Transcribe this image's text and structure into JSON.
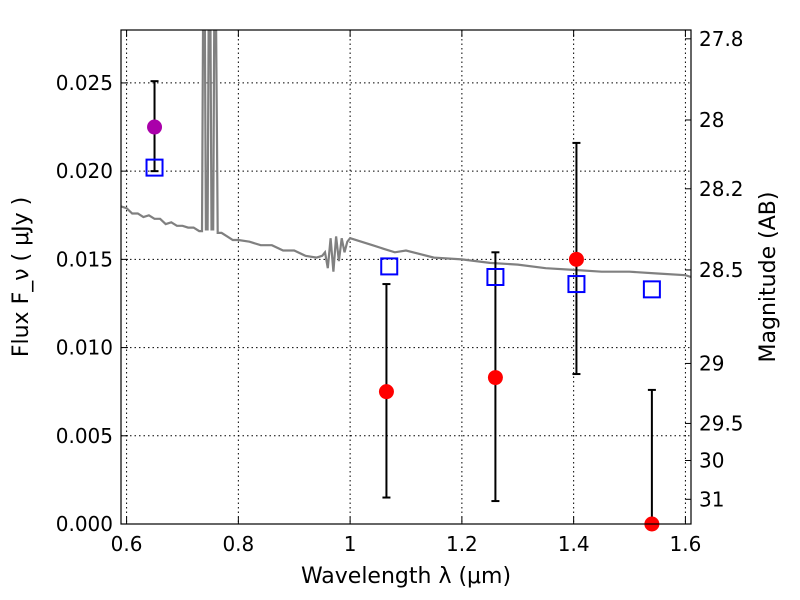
{
  "chart_data": {
    "type": "scatter",
    "xlabel": "Wavelength  λ (μm)",
    "ylabel": "Flux  F_ν  ( μJy )",
    "ylabel_right": "Magnitude (AB)",
    "xlim": [
      0.59,
      1.61
    ],
    "ylim": [
      0.0,
      0.028
    ],
    "grid": true,
    "x_ticks": [
      0.6,
      0.8,
      1.0,
      1.2,
      1.4,
      1.6
    ],
    "x_tick_labels": [
      "0.6",
      "0.8",
      "1",
      "1.2",
      "1.4",
      "1.6"
    ],
    "y_ticks": [
      0.0,
      0.005,
      0.01,
      0.015,
      0.02,
      0.025
    ],
    "y_tick_labels": [
      "0.000",
      "0.005",
      "0.010",
      "0.015",
      "0.020",
      "0.025"
    ],
    "right_ticks": [
      {
        "label": "27.8",
        "flux": 0.0275
      },
      {
        "label": "28",
        "flux": 0.0229
      },
      {
        "label": "28.2",
        "flux": 0.019
      },
      {
        "label": "28.5",
        "flux": 0.0144
      },
      {
        "label": "29",
        "flux": 0.0091
      },
      {
        "label": "29.5",
        "flux": 0.0057
      },
      {
        "label": "30",
        "flux": 0.0036
      },
      {
        "label": "31",
        "flux": 0.0014
      }
    ],
    "series": [
      {
        "color": "#808080",
        "kind": "line",
        "x": [
          0.59,
          0.6,
          0.61,
          0.62,
          0.63,
          0.64,
          0.65,
          0.66,
          0.67,
          0.68,
          0.69,
          0.7,
          0.71,
          0.72,
          0.73,
          0.735,
          0.737,
          0.74,
          0.742,
          0.745,
          0.747,
          0.75,
          0.752,
          0.755,
          0.757,
          0.76,
          0.763,
          0.766,
          0.77,
          0.78,
          0.79,
          0.8,
          0.82,
          0.84,
          0.86,
          0.88,
          0.9,
          0.92,
          0.94,
          0.95,
          0.955,
          0.96,
          0.965,
          0.97,
          0.975,
          0.98,
          0.985,
          0.99,
          0.995,
          1.0,
          1.02,
          1.04,
          1.06,
          1.08,
          1.1,
          1.15,
          1.2,
          1.25,
          1.3,
          1.35,
          1.4,
          1.45,
          1.5,
          1.55,
          1.6,
          1.61
        ],
        "y": [
          0.018,
          0.0179,
          0.0176,
          0.0176,
          0.0174,
          0.0175,
          0.0173,
          0.0173,
          0.017,
          0.0171,
          0.0169,
          0.0169,
          0.0168,
          0.0168,
          0.0166,
          0.0166,
          0.029,
          0.029,
          0.0167,
          0.0167,
          0.029,
          0.029,
          0.0167,
          0.0167,
          0.029,
          0.029,
          0.0165,
          0.0165,
          0.0165,
          0.0163,
          0.0161,
          0.0161,
          0.016,
          0.0158,
          0.0158,
          0.0155,
          0.0155,
          0.0152,
          0.0151,
          0.0152,
          0.0154,
          0.0145,
          0.0162,
          0.0143,
          0.0163,
          0.0149,
          0.0162,
          0.0154,
          0.016,
          0.0162,
          0.016,
          0.0158,
          0.0156,
          0.0154,
          0.0155,
          0.0151,
          0.015,
          0.0148,
          0.0147,
          0.0145,
          0.0144,
          0.0143,
          0.0143,
          0.0142,
          0.0141,
          0.014
        ]
      },
      {
        "color": "#aa00aa",
        "kind": "points",
        "marker": "circle",
        "x": [
          0.65
        ],
        "y": [
          0.0225
        ],
        "yerr_low": [
          0.0025
        ],
        "yerr_high": [
          0.0026
        ]
      },
      {
        "color": "#ff0000",
        "kind": "points",
        "marker": "circle",
        "x": [
          1.065,
          1.26,
          1.405,
          1.54
        ],
        "y": [
          0.0075,
          0.0083,
          0.015,
          0.0
        ],
        "yerr_low": [
          0.006,
          0.007,
          0.0065,
          0.0
        ],
        "yerr_high": [
          0.0061,
          0.0071,
          0.0066,
          0.0076
        ]
      },
      {
        "color": "#0000ff",
        "kind": "points",
        "marker": "open-square",
        "x": [
          0.65,
          1.07,
          1.26,
          1.405,
          1.54
        ],
        "y": [
          0.0202,
          0.0146,
          0.014,
          0.0136,
          0.0133
        ]
      }
    ]
  }
}
